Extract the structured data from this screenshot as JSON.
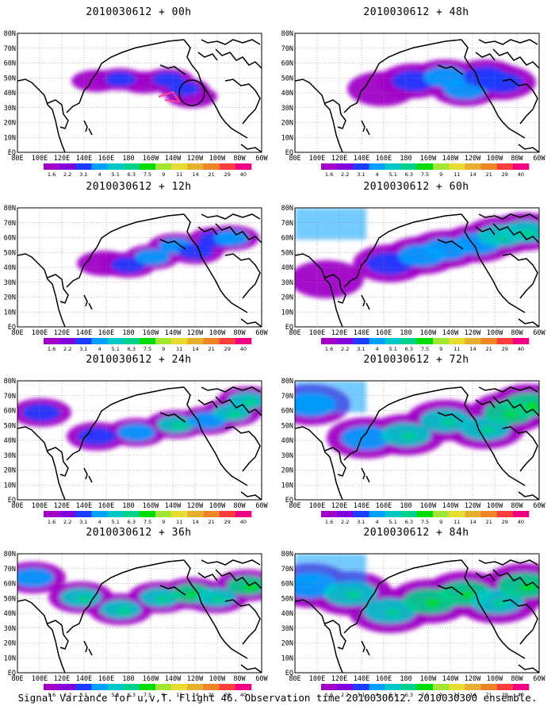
{
  "panels": [
    {
      "title": "2010030612 + 00h",
      "intensity": 0
    },
    {
      "title": "2010030612 + 48h",
      "intensity": 4
    },
    {
      "title": "2010030612 + 12h",
      "intensity": 1
    },
    {
      "title": "2010030612 + 60h",
      "intensity": 5
    },
    {
      "title": "2010030612 + 24h",
      "intensity": 2
    },
    {
      "title": "2010030612 + 72h",
      "intensity": 6
    },
    {
      "title": "2010030612 + 36h",
      "intensity": 3
    },
    {
      "title": "2010030612 + 84h",
      "intensity": 7
    }
  ],
  "lon_labels": [
    "80E",
    "100E",
    "120E",
    "140E",
    "160E",
    "180",
    "160W",
    "140W",
    "120W",
    "100W",
    "80W",
    "60W"
  ],
  "lat_labels": [
    "80N",
    "70N",
    "60N",
    "50N",
    "40N",
    "30N",
    "20N",
    "10N",
    "EQ"
  ],
  "colorbar": {
    "levels": [
      "1.6",
      "2.2",
      "3.1",
      "4",
      "5.1",
      "6.3",
      "7.5",
      "9",
      "11",
      "14",
      "21",
      "29",
      "40"
    ],
    "colors": [
      "#a000c8",
      "#8200dc",
      "#1e3cff",
      "#00a0ff",
      "#00c8c8",
      "#00d28c",
      "#00dc00",
      "#a0e632",
      "#e6dc32",
      "#e6af2d",
      "#f08228",
      "#fa3c3c",
      "#f00082"
    ]
  },
  "caption": "Signal Variance for u,v,T. Flight 46. Observation time 2010030612. 2010030300 ensemble."
}
